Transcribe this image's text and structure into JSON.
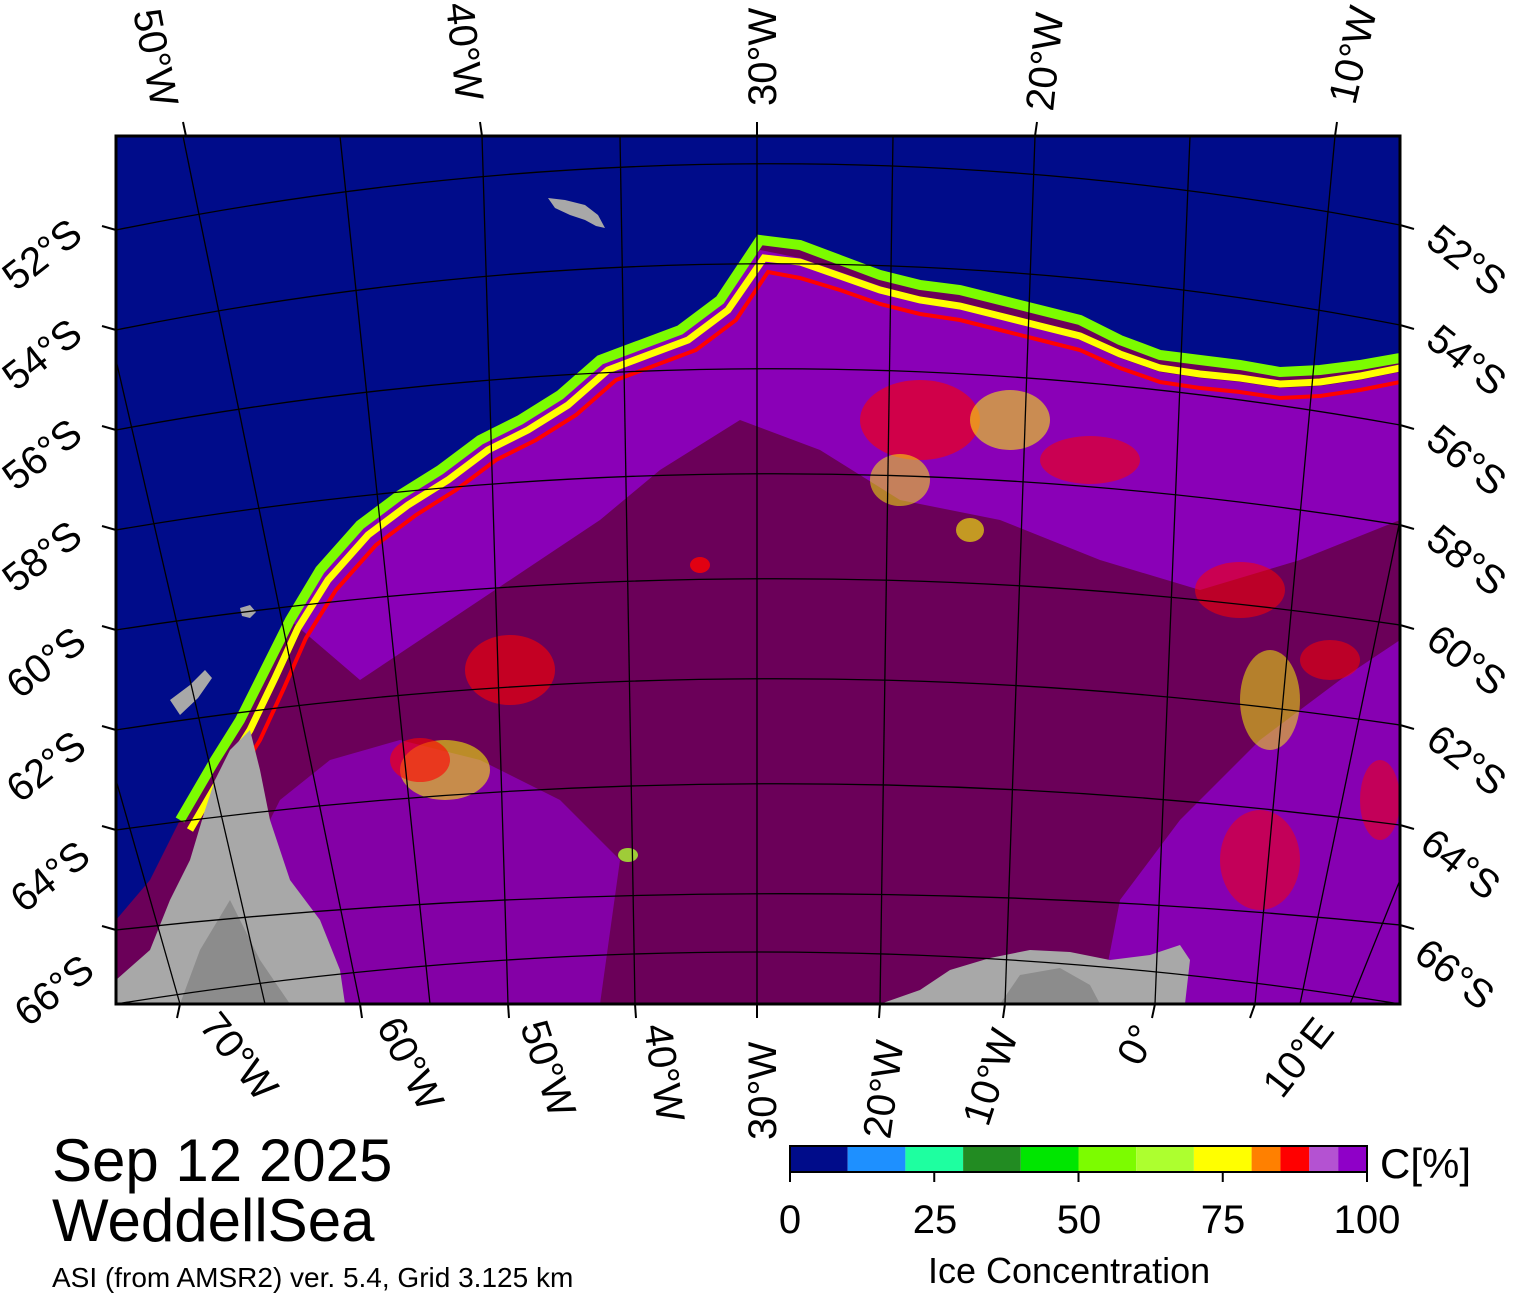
{
  "map": {
    "title_date": "Sep 12 2025",
    "title_region": "WeddellSea",
    "source": "ASI (from AMSR2) ver. 5.4,  Grid 3.125 km",
    "top_lon_labels": [
      "50°W",
      "40°W",
      "30°W",
      "20°W",
      "10°W"
    ],
    "bottom_lon_labels": [
      "70°W",
      "60°W",
      "50°W",
      "40°W",
      "30°W",
      "20°W",
      "10°W",
      "0°",
      "10°E"
    ],
    "left_lat_labels": [
      "52°S",
      "54°S",
      "56°S",
      "58°S",
      "60°S",
      "62°S",
      "64°S",
      "66°S"
    ],
    "right_lat_labels": [
      "52°S",
      "54°S",
      "56°S",
      "58°S",
      "60°S",
      "62°S",
      "64°S",
      "66°S"
    ],
    "colors": {
      "ocean": "#000c8a",
      "land": "#a8a8a8",
      "land_dark": "#8c8c8c",
      "ice_full": "#6b0059",
      "ice_high": "#8f00c8",
      "ice_mid": "#b452d2"
    }
  },
  "colorbar": {
    "label": "Ice Concentration",
    "unit": "C[%]",
    "ticks": [
      "0",
      "25",
      "50",
      "75",
      "100"
    ],
    "colors": [
      "#000c8a",
      "#1e90ff",
      "#1effa0",
      "#228b22",
      "#00e600",
      "#7cfc00",
      "#adff2f",
      "#ffff00",
      "#ff8000",
      "#ff0000",
      "#b452d2",
      "#8f00c8"
    ]
  }
}
